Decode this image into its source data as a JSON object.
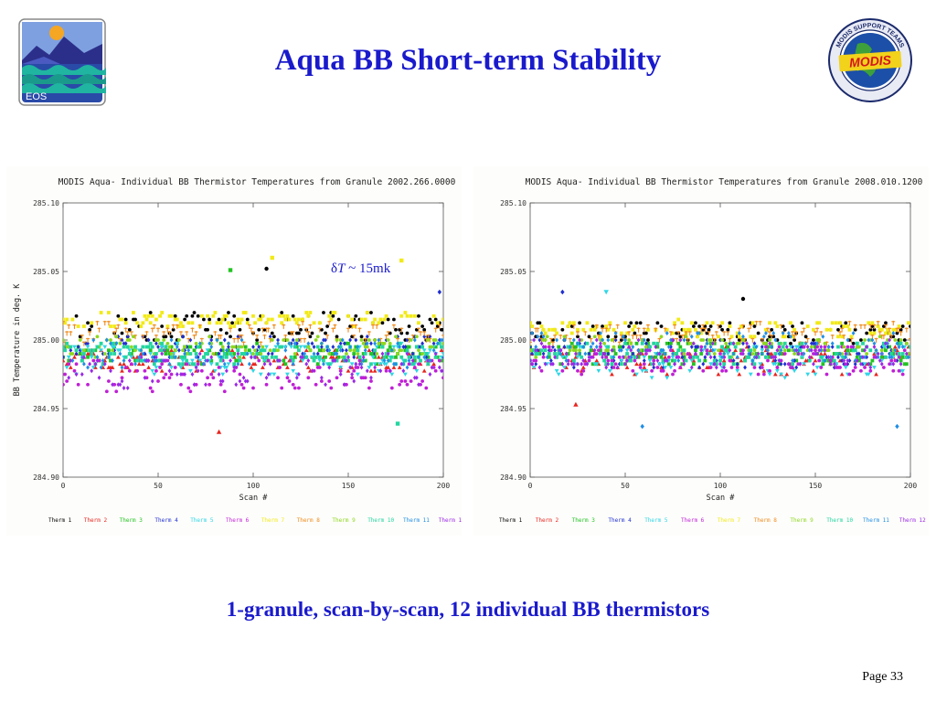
{
  "slide": {
    "title": "Aqua BB Short-term Stability",
    "caption": "1-granule, scan-by-scan, 12 individual BB thermistors",
    "page": "Page 33",
    "annotation": {
      "symbol": "δ",
      "var": "T",
      "text": " ~ 15mk"
    },
    "title_color": "#1a1acc"
  },
  "logos": {
    "left": {
      "icon": "eos-logo-icon",
      "label": "EOS"
    },
    "right": {
      "icon": "modis-logo-icon",
      "label": "MODIS",
      "ring_text": "MODIS SUPPORT TEAMS"
    }
  },
  "thermistors": [
    {
      "name": "Therm 1",
      "color": "#000000"
    },
    {
      "name": "Therm 2",
      "color": "#e8241e"
    },
    {
      "name": "Therm 3",
      "color": "#22c422"
    },
    {
      "name": "Therm 4",
      "color": "#1f2fd0"
    },
    {
      "name": "Therm 5",
      "color": "#2fd6e6"
    },
    {
      "name": "Therm 6",
      "color": "#c01fd6"
    },
    {
      "name": "Therm 7",
      "color": "#f2ea18"
    },
    {
      "name": "Therm 8",
      "color": "#f08a1a"
    },
    {
      "name": "Therm 9",
      "color": "#8ed81e"
    },
    {
      "name": "Therm 10",
      "color": "#22d6a0"
    },
    {
      "name": "Therm 11",
      "color": "#1f8ee6"
    },
    {
      "name": "Therm 12",
      "color": "#9a28e6"
    }
  ],
  "chart_data": [
    {
      "type": "scatter",
      "title": "MODIS Aqua- Individual BB Thermistor Temperatures from Granule 2002.266.0000",
      "xlabel": "Scan #",
      "ylabel": "BB Temperature in deg. K",
      "xlim": [
        0,
        200
      ],
      "ylim": [
        284.9,
        285.1
      ],
      "x_ticks": [
        "0",
        "50",
        "100",
        "150",
        "200"
      ],
      "y_ticks": [
        "284.90",
        "284.95",
        "285.00",
        "285.05",
        "285.10"
      ],
      "scan_count": 203,
      "series_levels": [
        285.01,
        284.985,
        284.99,
        284.995,
        284.985,
        284.975,
        285.015,
        285.005,
        284.995,
        284.99,
        284.99,
        284.978
      ],
      "series_spread": [
        0.01,
        0.008,
        0.007,
        0.008,
        0.012,
        0.012,
        0.005,
        0.007,
        0.007,
        0.008,
        0.01,
        0.012
      ],
      "outliers": [
        {
          "x": 110,
          "y": 285.06,
          "series": 6
        },
        {
          "x": 107,
          "y": 285.052,
          "series": 0
        },
        {
          "x": 88,
          "y": 285.051,
          "series": 2
        },
        {
          "x": 82,
          "y": 284.933,
          "series": 1
        },
        {
          "x": 176,
          "y": 284.939,
          "series": 9
        },
        {
          "x": 178,
          "y": 285.058,
          "series": 6
        },
        {
          "x": 198,
          "y": 285.035,
          "series": 3
        }
      ]
    },
    {
      "type": "scatter",
      "title": "MODIS Aqua- Individual BB Thermistor Temperatures from Granule 2008.010.1200",
      "xlabel": "Scan #",
      "ylabel": "",
      "xlim": [
        0,
        200
      ],
      "ylim": [
        284.9,
        285.1
      ],
      "x_ticks": [
        "0",
        "50",
        "100",
        "150",
        "200"
      ],
      "y_ticks": [
        "284.90",
        "284.95",
        "285.00",
        "285.05",
        "285.10"
      ],
      "scan_count": 203,
      "series_levels": [
        285.005,
        284.985,
        284.99,
        284.99,
        284.985,
        284.985,
        285.008,
        285.005,
        284.995,
        284.99,
        284.995,
        284.99
      ],
      "series_spread": [
        0.008,
        0.01,
        0.008,
        0.01,
        0.012,
        0.01,
        0.006,
        0.007,
        0.007,
        0.008,
        0.01,
        0.01
      ],
      "outliers": [
        {
          "x": 112,
          "y": 285.03,
          "series": 0
        },
        {
          "x": 17,
          "y": 285.035,
          "series": 3
        },
        {
          "x": 59,
          "y": 284.937,
          "series": 10
        },
        {
          "x": 193,
          "y": 284.937,
          "series": 10
        },
        {
          "x": 40,
          "y": 285.035,
          "series": 4
        },
        {
          "x": 24,
          "y": 284.953,
          "series": 1
        }
      ]
    }
  ]
}
